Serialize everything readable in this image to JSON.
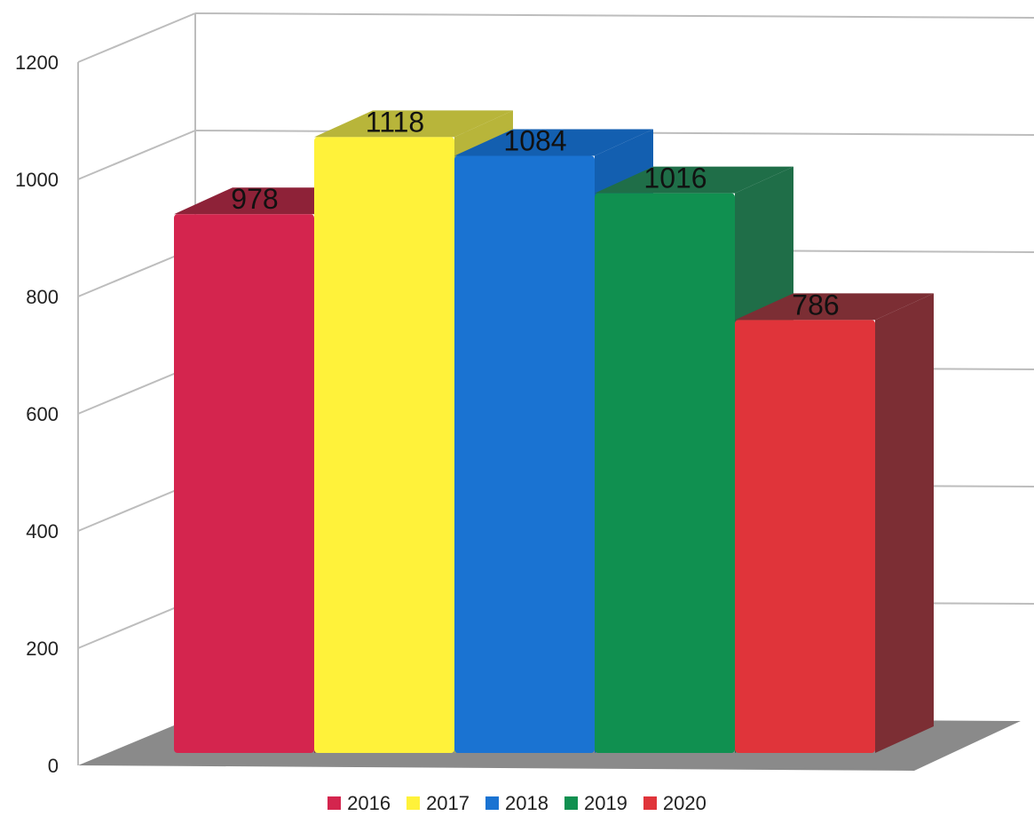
{
  "chart_data": {
    "type": "bar",
    "title": "",
    "xlabel": "",
    "ylabel": "",
    "categories": [
      "2016",
      "2017",
      "2018",
      "2019",
      "2020"
    ],
    "values": [
      978,
      1118,
      1084,
      1016,
      786
    ],
    "ylim": [
      0,
      1200
    ],
    "yticks": [
      0,
      200,
      400,
      600,
      800,
      1000,
      1200
    ],
    "grid": true,
    "three_d": true,
    "legend_position": "bottom",
    "colors": [
      "#d4254e",
      "#fff23a",
      "#1a73d2",
      "#109050",
      "#e0343a"
    ],
    "side_colors": [
      "#8e2238",
      "#b8b53a",
      "#135fb0",
      "#1f6e48",
      "#7c2e34"
    ],
    "floor_color": "#8a8a8a"
  }
}
